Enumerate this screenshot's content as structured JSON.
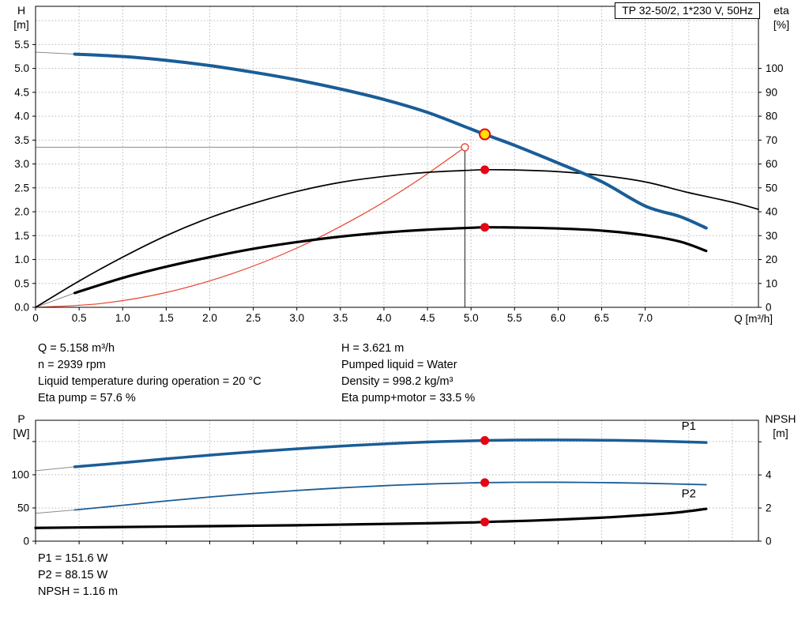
{
  "title_box": {
    "text": "TP 32-50/2, 1*230 V, 50Hz"
  },
  "info": {
    "left": [
      "Q = 5.158 m³/h",
      "n = 2939 rpm",
      "Liquid temperature during operation = 20 °C",
      "Eta pump = 57.6 %"
    ],
    "right": [
      "H = 3.621 m",
      "Pumped liquid = Water",
      "Density = 998.2 kg/m³",
      "Eta pump+motor = 33.5 %"
    ],
    "bottom": [
      "P1 = 151.6 W",
      "P2 = 88.15 W",
      "NPSH = 1.16 m"
    ]
  },
  "duty_point": {
    "q_m3h": 5.158,
    "h_m": 3.621,
    "eta_pump_pct": 57.6,
    "eta_pump_motor_pct": 33.5,
    "p1_w": 151.6,
    "p2_w": 88.15,
    "npsh_m": 1.16,
    "speed_rpm": 2939
  },
  "chart_data": [
    {
      "type": "line",
      "title": "TP 32-50/2, 1*230 V, 50Hz",
      "grid": true,
      "x_axis": {
        "label": "Q [m³/h]",
        "min": 0,
        "max": 8.3,
        "ticks": [
          {
            "v": 0,
            "label": "0"
          },
          {
            "v": 0.5,
            "label": "0.5"
          },
          {
            "v": 1,
            "label": "1.0"
          },
          {
            "v": 1.5,
            "label": "1.5"
          },
          {
            "v": 2,
            "label": "2.0"
          },
          {
            "v": 2.5,
            "label": "2.5"
          },
          {
            "v": 3,
            "label": "3.0"
          },
          {
            "v": 3.5,
            "label": "3.5"
          },
          {
            "v": 4,
            "label": "4.0"
          },
          {
            "v": 4.5,
            "label": "4.5"
          },
          {
            "v": 5,
            "label": "5.0"
          },
          {
            "v": 5.5,
            "label": "5.5"
          },
          {
            "v": 6,
            "label": "6.0"
          },
          {
            "v": 6.5,
            "label": "6.5"
          },
          {
            "v": 7,
            "label": "7.0"
          },
          {
            "v": 7.5,
            "label": "",
            "mark": false
          },
          {
            "v": 8,
            "label": "",
            "mark": false
          }
        ]
      },
      "y_left": {
        "label": "H",
        "unit": "[m]",
        "min": 0,
        "max": 6.3,
        "ticks": [
          {
            "v": 0,
            "label": "0.0"
          },
          {
            "v": 0.5,
            "label": "0.5"
          },
          {
            "v": 1,
            "label": "1.0"
          },
          {
            "v": 1.5,
            "label": "1.5"
          },
          {
            "v": 2,
            "label": "2.0"
          },
          {
            "v": 2.5,
            "label": "2.5"
          },
          {
            "v": 3,
            "label": "3.0"
          },
          {
            "v": 3.5,
            "label": "3.5"
          },
          {
            "v": 4,
            "label": "4.0"
          },
          {
            "v": 4.5,
            "label": "4.5"
          },
          {
            "v": 5,
            "label": "5.0"
          },
          {
            "v": 5.5,
            "label": "5.5"
          },
          {
            "v": 6,
            "label": "",
            "mark": false
          }
        ]
      },
      "y_right": {
        "label": "eta",
        "unit": "[%]",
        "min": 0,
        "max": 126,
        "ticks": [
          {
            "v": 0,
            "label": "0"
          },
          {
            "v": 10,
            "label": "10"
          },
          {
            "v": 20,
            "label": "20"
          },
          {
            "v": 30,
            "label": "30"
          },
          {
            "v": 40,
            "label": "40"
          },
          {
            "v": 50,
            "label": "50"
          },
          {
            "v": 60,
            "label": "60"
          },
          {
            "v": 70,
            "label": "70"
          },
          {
            "v": 80,
            "label": "80"
          },
          {
            "v": 90,
            "label": "90"
          },
          {
            "v": 100,
            "label": "100"
          }
        ]
      },
      "guides": [
        {
          "axis": "left",
          "x1": 4.93,
          "y1": 0,
          "x2": 4.93,
          "y2": 3.35,
          "color": "#222222",
          "width": 1
        },
        {
          "axis": "left",
          "x1": 0,
          "y1": 3.35,
          "x2": 4.93,
          "y2": 3.35,
          "color": "#8c8c8c",
          "width": 1
        }
      ],
      "series": [
        {
          "name": "head-curve-lead",
          "axis": "left",
          "color": "#8c8c8c",
          "width": 1,
          "points": [
            [
              0,
              5.34
            ],
            [
              0.45,
              5.3
            ]
          ]
        },
        {
          "name": "eta-pump-motor-lead",
          "axis": "right",
          "color": "#777777",
          "width": 0.9,
          "points": [
            [
              0,
              0
            ],
            [
              0.45,
              6
            ]
          ]
        },
        {
          "name": "system-curve",
          "axis": "left",
          "color": "#e8432e",
          "width": 1.2,
          "points": [
            [
              0,
              0
            ],
            [
              0.75,
              0.08
            ],
            [
              1.5,
              0.31
            ],
            [
              2.25,
              0.7
            ],
            [
              3,
              1.24
            ],
            [
              3.75,
              1.94
            ],
            [
              4.35,
              2.61
            ],
            [
              4.93,
              3.35
            ]
          ]
        },
        {
          "name": "eta-pump-curve",
          "axis": "right",
          "color": "#000000",
          "width": 1.7,
          "points": [
            [
              0,
              0
            ],
            [
              0.5,
              11
            ],
            [
              1,
              21
            ],
            [
              1.5,
              30
            ],
            [
              2,
              37.5
            ],
            [
              2.5,
              43.5
            ],
            [
              3,
              48.5
            ],
            [
              3.5,
              52.3
            ],
            [
              4,
              54.8
            ],
            [
              4.5,
              56.5
            ],
            [
              5,
              57.4
            ],
            [
              5.158,
              57.6
            ],
            [
              5.5,
              57.5
            ],
            [
              6,
              56.8
            ],
            [
              6.5,
              55.2
            ],
            [
              7,
              52.5
            ],
            [
              7.5,
              48
            ],
            [
              8,
              44
            ],
            [
              8.3,
              41
            ]
          ]
        },
        {
          "name": "eta-pump-motor-curve",
          "axis": "right",
          "color": "#000000",
          "width": 3.2,
          "points": [
            [
              0.45,
              6
            ],
            [
              1,
              12.3
            ],
            [
              1.5,
              17
            ],
            [
              2,
              21
            ],
            [
              2.5,
              24.5
            ],
            [
              3,
              27.3
            ],
            [
              3.5,
              29.6
            ],
            [
              4,
              31.3
            ],
            [
              4.5,
              32.5
            ],
            [
              5,
              33.3
            ],
            [
              5.158,
              33.5
            ],
            [
              5.5,
              33.4
            ],
            [
              6,
              33
            ],
            [
              6.5,
              32.1
            ],
            [
              7,
              30.2
            ],
            [
              7.4,
              27.5
            ],
            [
              7.7,
              23.6
            ]
          ]
        },
        {
          "name": "head-curve",
          "axis": "left",
          "color": "#1a5d97",
          "width": 4,
          "points": [
            [
              0.45,
              5.3
            ],
            [
              1,
              5.25
            ],
            [
              1.5,
              5.17
            ],
            [
              2,
              5.06
            ],
            [
              2.5,
              4.92
            ],
            [
              3,
              4.76
            ],
            [
              3.5,
              4.57
            ],
            [
              4,
              4.35
            ],
            [
              4.5,
              4.08
            ],
            [
              5,
              3.73
            ],
            [
              5.158,
              3.621
            ],
            [
              5.5,
              3.39
            ],
            [
              6,
              3.02
            ],
            [
              6.5,
              2.63
            ],
            [
              7,
              2.12
            ],
            [
              7.4,
              1.9
            ],
            [
              7.7,
              1.66
            ]
          ]
        }
      ],
      "markers": [
        {
          "name": "system-intersection-point",
          "axis": "left",
          "x": 4.93,
          "y": 3.35,
          "r": 4.5,
          "fill": "#ffffff",
          "stroke": "#e8432e",
          "stroke_width": 1.4
        },
        {
          "name": "eta-pump-point",
          "axis": "right",
          "x": 5.158,
          "y": 57.6,
          "r": 5.5,
          "fill": "#e30613",
          "stroke": "none",
          "stroke_width": 0
        },
        {
          "name": "eta-pump-motor-point",
          "axis": "right",
          "x": 5.158,
          "y": 33.5,
          "r": 5.5,
          "fill": "#e30613",
          "stroke": "none",
          "stroke_width": 0
        },
        {
          "name": "duty-point",
          "axis": "left",
          "x": 5.158,
          "y": 3.621,
          "r": 6.5,
          "fill": "#ffe000",
          "stroke": "#e30613",
          "stroke_width": 2
        }
      ],
      "annotations": []
    },
    {
      "type": "line",
      "title": "",
      "grid": true,
      "x_axis": {
        "label": "",
        "min": 0,
        "max": 8.3,
        "ticks": [
          {
            "v": 0,
            "label": ""
          },
          {
            "v": 0.5,
            "label": ""
          },
          {
            "v": 1,
            "label": ""
          },
          {
            "v": 1.5,
            "label": ""
          },
          {
            "v": 2,
            "label": ""
          },
          {
            "v": 2.5,
            "label": ""
          },
          {
            "v": 3,
            "label": ""
          },
          {
            "v": 3.5,
            "label": ""
          },
          {
            "v": 4,
            "label": ""
          },
          {
            "v": 4.5,
            "label": ""
          },
          {
            "v": 5,
            "label": ""
          },
          {
            "v": 5.5,
            "label": ""
          },
          {
            "v": 6,
            "label": ""
          },
          {
            "v": 6.5,
            "label": ""
          },
          {
            "v": 7,
            "label": ""
          },
          {
            "v": 7.5,
            "label": "",
            "mark": false
          },
          {
            "v": 8,
            "label": "",
            "mark": false
          }
        ]
      },
      "y_left": {
        "label": "P",
        "unit": "[W]",
        "min": 0,
        "max": 182,
        "ticks": [
          {
            "v": 0,
            "label": "0"
          },
          {
            "v": 50,
            "label": "50"
          },
          {
            "v": 100,
            "label": "100"
          },
          {
            "v": 150,
            "label": ""
          }
        ]
      },
      "y_right": {
        "label": "NPSH",
        "unit": "[m]",
        "min": 0,
        "max": 7.3,
        "ticks": [
          {
            "v": 0,
            "label": "0"
          },
          {
            "v": 2,
            "label": "2"
          },
          {
            "v": 4,
            "label": "4"
          },
          {
            "v": 6,
            "label": ""
          }
        ]
      },
      "guides": [],
      "series": [
        {
          "name": "p1-curve-lead",
          "axis": "left",
          "color": "#8c8c8c",
          "width": 1,
          "points": [
            [
              0,
              106
            ],
            [
              0.45,
              112
            ]
          ]
        },
        {
          "name": "p2-curve-lead",
          "axis": "left",
          "color": "#8c8c8c",
          "width": 1,
          "points": [
            [
              0,
              42
            ],
            [
              0.45,
              47
            ]
          ]
        },
        {
          "name": "npsh-curve",
          "axis": "right",
          "color": "#000000",
          "width": 3.2,
          "points": [
            [
              0,
              0.8
            ],
            [
              0.75,
              0.84
            ],
            [
              1.5,
              0.88
            ],
            [
              2.25,
              0.92
            ],
            [
              3,
              0.96
            ],
            [
              3.75,
              1.02
            ],
            [
              4.5,
              1.08
            ],
            [
              5,
              1.13
            ],
            [
              5.158,
              1.16
            ],
            [
              5.75,
              1.25
            ],
            [
              6.5,
              1.42
            ],
            [
              7,
              1.58
            ],
            [
              7.35,
              1.72
            ],
            [
              7.7,
              1.95
            ]
          ]
        },
        {
          "name": "p2-curve",
          "axis": "left",
          "color": "#1a5d97",
          "width": 1.8,
          "points": [
            [
              0.45,
              47
            ],
            [
              1,
              54
            ],
            [
              1.5,
              60.5
            ],
            [
              2,
              66.5
            ],
            [
              2.5,
              71.8
            ],
            [
              3,
              76.3
            ],
            [
              3.5,
              80.2
            ],
            [
              4,
              83.5
            ],
            [
              4.5,
              86
            ],
            [
              5,
              87.7
            ],
            [
              5.158,
              88.15
            ],
            [
              5.5,
              88.6
            ],
            [
              6,
              88.7
            ],
            [
              6.5,
              88.2
            ],
            [
              7,
              87.2
            ],
            [
              7.7,
              85
            ]
          ]
        },
        {
          "name": "p1-curve",
          "axis": "left",
          "color": "#1a5d97",
          "width": 3.5,
          "points": [
            [
              0.45,
              112
            ],
            [
              1,
              118
            ],
            [
              1.5,
              124
            ],
            [
              2,
              129.5
            ],
            [
              2.5,
              134.5
            ],
            [
              3,
              139
            ],
            [
              3.5,
              143
            ],
            [
              4,
              146.5
            ],
            [
              4.5,
              149.3
            ],
            [
              5,
              151
            ],
            [
              5.158,
              151.6
            ],
            [
              5.5,
              152.2
            ],
            [
              6,
              152.4
            ],
            [
              6.5,
              152
            ],
            [
              7,
              151
            ],
            [
              7.7,
              148.5
            ]
          ]
        }
      ],
      "markers": [
        {
          "name": "p1-point",
          "axis": "left",
          "x": 5.158,
          "y": 151.6,
          "r": 5.5,
          "fill": "#e30613",
          "stroke": "none",
          "stroke_width": 0
        },
        {
          "name": "p2-point",
          "axis": "left",
          "x": 5.158,
          "y": 88.15,
          "r": 5.5,
          "fill": "#e30613",
          "stroke": "none",
          "stroke_width": 0
        },
        {
          "name": "npsh-point",
          "axis": "right",
          "x": 5.158,
          "y": 1.16,
          "r": 5.5,
          "fill": "#e30613",
          "stroke": "none",
          "stroke_width": 0
        }
      ],
      "annotations": [
        {
          "text": "P1",
          "axis": "left",
          "x": 7.5,
          "y": 168,
          "color": "#1a5d97",
          "size": 15
        },
        {
          "text": "P2",
          "axis": "left",
          "x": 7.5,
          "y": 66,
          "color": "#1a5d97",
          "size": 15
        }
      ]
    }
  ]
}
